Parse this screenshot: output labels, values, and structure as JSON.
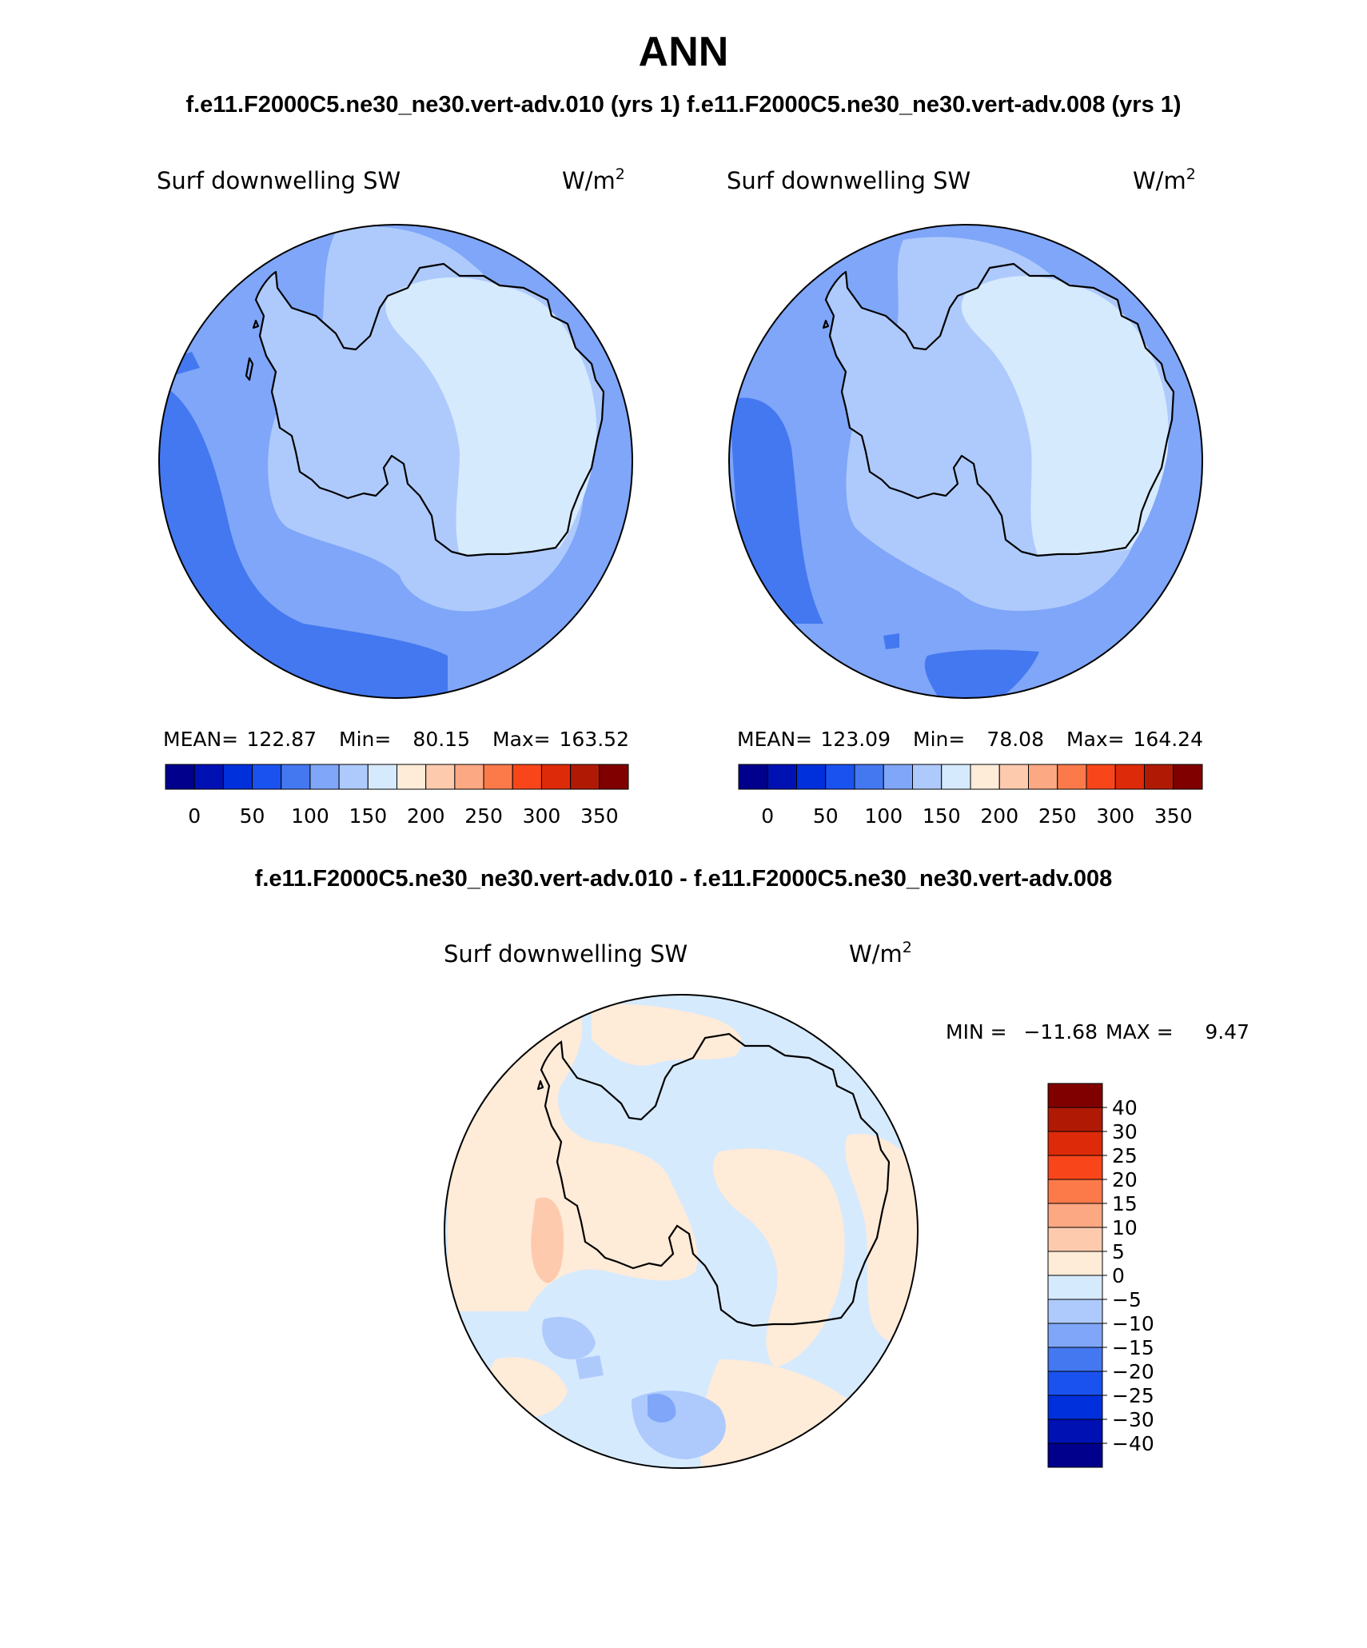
{
  "title": "ANN",
  "subtitle": "f.e11.F2000C5.ne30_ne30.vert-adv.010 (yrs 1) f.e11.F2000C5.ne30_ne30.vert-adv.008 (yrs 1)",
  "panels": [
    {
      "variable": "Surf downwelling SW",
      "units": "W/m",
      "units_exp": "2",
      "stats": {
        "mean_label": "MEAN=",
        "mean": "122.87",
        "min_label": "Min=",
        "min": "80.15",
        "max_label": "Max=",
        "max": "163.52"
      }
    },
    {
      "variable": "Surf downwelling SW",
      "units": "W/m",
      "units_exp": "2",
      "stats": {
        "mean_label": "MEAN=",
        "mean": "123.09",
        "min_label": "Min=",
        "min": "78.08",
        "max_label": "Max=",
        "max": "164.24"
      }
    }
  ],
  "main_colorbar": {
    "colors": [
      "#00008c",
      "#0011b4",
      "#0030dc",
      "#1a52f0",
      "#4478f0",
      "#7fa6f8",
      "#aecafc",
      "#d6eafe",
      "#feebd8",
      "#fdcaae",
      "#fca882",
      "#fc7a4a",
      "#f8461a",
      "#dd2a08",
      "#b01a05",
      "#800000"
    ],
    "ticks": [
      "0",
      "50",
      "100",
      "150",
      "200",
      "250",
      "300",
      "350"
    ]
  },
  "diff_title": "f.e11.F2000C5.ne30_ne30.vert-adv.010 - f.e11.F2000C5.ne30_ne30.vert-adv.008",
  "diff_panel": {
    "variable": "Surf downwelling SW",
    "units": "W/m",
    "units_exp": "2",
    "min_label": "MIN =",
    "min": "−11.68",
    "max_label": "MAX =",
    "max": "9.47"
  },
  "diff_colorbar": {
    "colors": [
      "#800000",
      "#b01a05",
      "#dd2a08",
      "#f8461a",
      "#fc7a4a",
      "#fca882",
      "#fdcaae",
      "#feebd8",
      "#d6eafe",
      "#aecafc",
      "#7fa6f8",
      "#4478f0",
      "#1a52f0",
      "#0030dc",
      "#0011b4",
      "#00008c"
    ],
    "labels": [
      "40",
      "30",
      "25",
      "20",
      "15",
      "10",
      "5",
      "0",
      "−5",
      "−10",
      "−15",
      "−20",
      "−25",
      "−30",
      "−40"
    ]
  },
  "colors": {
    "ocean_fill_1": "#7fa6f8",
    "ice_fill": "#d6eafe",
    "diff_bg": "#d6eafe"
  }
}
